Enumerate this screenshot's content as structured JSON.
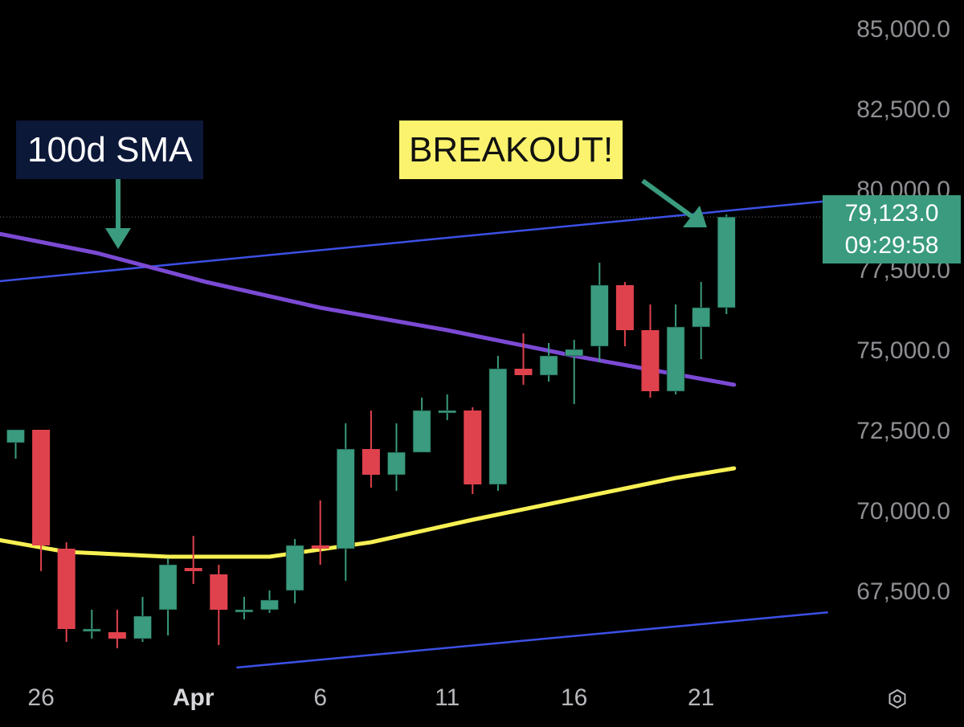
{
  "chart_data": {
    "type": "candlestick",
    "title": "",
    "xlabel": "",
    "ylabel": "",
    "ylim": [
      65000,
      86000
    ],
    "y_ticks": [
      "85,000.0",
      "82,500.0",
      "80,000.0",
      "77,500.0",
      "75,000.0",
      "72,500.0",
      "70,000.0",
      "67,500.0"
    ],
    "y_tick_values": [
      85000,
      82500,
      80000,
      77500,
      75000,
      72500,
      70000,
      67500
    ],
    "x_ticks": [
      {
        "label": "26",
        "index": 1,
        "bold": false
      },
      {
        "label": "Apr",
        "index": 7,
        "bold": true
      },
      {
        "label": "6",
        "index": 12,
        "bold": false
      },
      {
        "label": "11",
        "index": 17,
        "bold": false
      },
      {
        "label": "16",
        "index": 22,
        "bold": false
      },
      {
        "label": "21",
        "index": 27,
        "bold": false
      }
    ],
    "candles": [
      {
        "i": 0,
        "o": 72100,
        "h": 72500,
        "l": 71600,
        "c": 72500
      },
      {
        "i": 1,
        "o": 72500,
        "h": 72500,
        "l": 68100,
        "c": 68900
      },
      {
        "i": 2,
        "o": 68800,
        "h": 69000,
        "l": 65900,
        "c": 66300
      },
      {
        "i": 3,
        "o": 66300,
        "h": 66900,
        "l": 66000,
        "c": 66300
      },
      {
        "i": 4,
        "o": 66200,
        "h": 66900,
        "l": 65700,
        "c": 66000
      },
      {
        "i": 5,
        "o": 66000,
        "h": 67300,
        "l": 65900,
        "c": 66700
      },
      {
        "i": 6,
        "o": 66900,
        "h": 68500,
        "l": 66100,
        "c": 68300
      },
      {
        "i": 7,
        "o": 68200,
        "h": 69200,
        "l": 67700,
        "c": 68100
      },
      {
        "i": 8,
        "o": 68000,
        "h": 68300,
        "l": 65800,
        "c": 66900
      },
      {
        "i": 9,
        "o": 66900,
        "h": 67300,
        "l": 66600,
        "c": 66900
      },
      {
        "i": 10,
        "o": 66900,
        "h": 67500,
        "l": 66800,
        "c": 67200
      },
      {
        "i": 11,
        "o": 67500,
        "h": 69100,
        "l": 67100,
        "c": 68900
      },
      {
        "i": 12,
        "o": 68900,
        "h": 70300,
        "l": 68300,
        "c": 68800
      },
      {
        "i": 13,
        "o": 68800,
        "h": 72700,
        "l": 67800,
        "c": 71900
      },
      {
        "i": 14,
        "o": 71900,
        "h": 73100,
        "l": 70700,
        "c": 71100
      },
      {
        "i": 15,
        "o": 71100,
        "h": 72700,
        "l": 70600,
        "c": 71800
      },
      {
        "i": 16,
        "o": 71800,
        "h": 73500,
        "l": 71800,
        "c": 73100
      },
      {
        "i": 17,
        "o": 73100,
        "h": 73600,
        "l": 72800,
        "c": 73100
      },
      {
        "i": 18,
        "o": 73100,
        "h": 73200,
        "l": 70500,
        "c": 70800
      },
      {
        "i": 19,
        "o": 70800,
        "h": 74800,
        "l": 70600,
        "c": 74400
      },
      {
        "i": 20,
        "o": 74400,
        "h": 75500,
        "l": 73900,
        "c": 74200
      },
      {
        "i": 21,
        "o": 74200,
        "h": 75200,
        "l": 74000,
        "c": 74800
      },
      {
        "i": 22,
        "o": 74800,
        "h": 75300,
        "l": 73300,
        "c": 75000
      },
      {
        "i": 23,
        "o": 75100,
        "h": 77700,
        "l": 74600,
        "c": 77000
      },
      {
        "i": 24,
        "o": 77000,
        "h": 77100,
        "l": 75100,
        "c": 75600
      },
      {
        "i": 25,
        "o": 75600,
        "h": 76400,
        "l": 73500,
        "c": 73700
      },
      {
        "i": 26,
        "o": 73700,
        "h": 76400,
        "l": 73600,
        "c": 75700
      },
      {
        "i": 27,
        "o": 75700,
        "h": 77100,
        "l": 74700,
        "c": 76300
      },
      {
        "i": 28,
        "o": 76300,
        "h": 79200,
        "l": 76100,
        "c": 79123
      }
    ],
    "sma_100": [
      {
        "i": -1.6,
        "y": 78750
      },
      {
        "i": 3.2,
        "y": 78000
      },
      {
        "i": 7.5,
        "y": 77100
      },
      {
        "i": 12,
        "y": 76300
      },
      {
        "i": 17,
        "y": 75600
      },
      {
        "i": 22,
        "y": 74800
      },
      {
        "i": 28.3,
        "y": 73900
      }
    ],
    "sma_yellow": [
      {
        "i": -1.6,
        "y": 69200
      },
      {
        "i": 2,
        "y": 68700
      },
      {
        "i": 6,
        "y": 68550
      },
      {
        "i": 10,
        "y": 68550
      },
      {
        "i": 14,
        "y": 69000
      },
      {
        "i": 18,
        "y": 69700
      },
      {
        "i": 22,
        "y": 70350
      },
      {
        "i": 26,
        "y": 71000
      },
      {
        "i": 28.3,
        "y": 71300
      }
    ],
    "trendline_upper": [
      {
        "i": -1.6,
        "y": 77050
      },
      {
        "i": 32,
        "y": 79620
      }
    ],
    "trendline_lower": [
      {
        "i": 8.7,
        "y": 65100
      },
      {
        "i": 32,
        "y": 66820
      }
    ],
    "last_price": 79123,
    "colors": {
      "up": "#3a9b7e",
      "down": "#e0424d",
      "sma_100": "#7b4ad4",
      "sma_yellow": "#f7f053",
      "trendline": "#3d50e6",
      "arrow": "#3a9b7e"
    }
  },
  "price_tag": {
    "price": "79,123.0",
    "countdown": "09:29:58"
  },
  "annotations": {
    "sma_label": "100d SMA",
    "breakout_label": "BREAKOUT!"
  },
  "toolbar": {
    "settings_icon": "settings-icon"
  }
}
